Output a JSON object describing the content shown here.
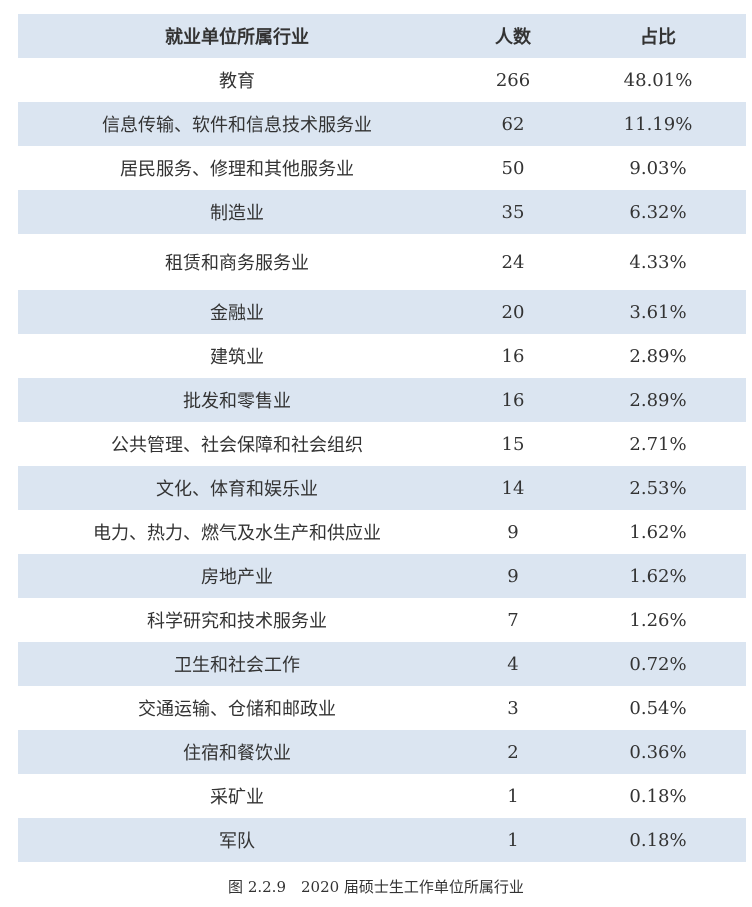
{
  "table": {
    "header": [
      "就业单位所属行业",
      "人数",
      "占比"
    ],
    "rows": [
      [
        "教育",
        266,
        "48.01%"
      ],
      [
        "信息传输、软件和信息技术服务业",
        62,
        "11.19%"
      ],
      [
        "居民服务、修理和其他服务业",
        50,
        "9.03%"
      ],
      [
        "制造业",
        35,
        "6.32%"
      ],
      [
        "租赁和商务服务业",
        24,
        "4.33%"
      ],
      [
        "金融业",
        20,
        "3.61%"
      ],
      [
        "建筑业",
        16,
        "2.89%"
      ],
      [
        "批发和零售业",
        16,
        "2.89%"
      ],
      [
        "公共管理、社会保障和社会组织",
        15,
        "2.71%"
      ],
      [
        "文化、体育和娱乐业",
        14,
        "2.53%"
      ],
      [
        "电力、热力、燃气及水生产和供应业",
        9,
        "1.62%"
      ],
      [
        "房地产业",
        9,
        "1.62%"
      ],
      [
        "科学研究和技术服务业",
        7,
        "1.26%"
      ],
      [
        "卫生和社会工作",
        4,
        "0.72%"
      ],
      [
        "交通运输、仓储和邮政业",
        3,
        "0.54%"
      ],
      [
        "住宿和餐饮业",
        2,
        "0.36%"
      ],
      [
        "采矿业",
        1,
        "0.18%"
      ],
      [
        "军队",
        1,
        "0.18%"
      ]
    ]
  },
  "caption": "图 2.2.9　2020 届硕士生工作单位所属行业"
}
